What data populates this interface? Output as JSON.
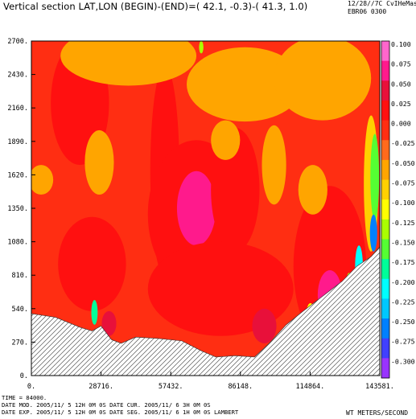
{
  "header": {
    "title": "Vertical section LAT,LON (BEGIN)-(END)=( 42.1,  -0.3)-( 41.3,   1.0)",
    "date_line1": "12/28//7C    CvIHeMas",
    "date_line2": "EBR06 0300"
  },
  "footer": {
    "time_line": "TIME =    84000.",
    "line2": "DATE MOD. 2005/11/ 5  12H 0M 0S    DATE CUR. 2005/11/ 6    3H 0M 0S",
    "line3": "DATE EXP. 2005/11/ 5  12H 0M 0S    DATE SEG. 2005/11/ 6    1H 0M 0S    LAMBERT"
  },
  "units": "WT METERS/SECOND",
  "chart_data": {
    "type": "heatmap",
    "variable": "vertical velocity (WT)",
    "x_ticks": [
      0,
      28716,
      57432,
      86148,
      114864,
      143581
    ],
    "x_tick_labels": [
      "0.",
      "28716.",
      "57432.",
      "86148.",
      "114864.",
      "143581."
    ],
    "y_ticks": [
      0,
      270,
      540,
      810,
      1080,
      1350,
      1620,
      1890,
      2160,
      2430,
      2700
    ],
    "y_tick_labels": [
      "0.",
      "270.",
      "540.",
      "810.",
      "1080.",
      "1350.",
      "1620.",
      "1890.",
      "2160.",
      "2430.",
      "2700."
    ],
    "xlim": [
      0,
      143581
    ],
    "ylim": [
      0,
      2700
    ],
    "colorbar": {
      "levels": [
        0.1,
        0.075,
        0.05,
        0.025,
        0.0,
        -0.025,
        -0.05,
        -0.075,
        -0.1,
        -0.125,
        -0.15,
        -0.175,
        -0.2,
        -0.225,
        -0.25,
        -0.275,
        -0.3
      ],
      "labels": [
        "0.100",
        "0.075",
        "0.050",
        "0.025",
        "0.000",
        "-0.025",
        "-0.050",
        "-0.075",
        "-0.100",
        "-0.125",
        "-0.150",
        "-0.175",
        "-0.200",
        "-0.225",
        "-0.250",
        "-0.275",
        "-0.300"
      ],
      "colors": [
        "#ff66cc",
        "#ff1a8c",
        "#e8103a",
        "#ff1010",
        "#ff2e12",
        "#ff6a1c",
        "#ffa500",
        "#ffd000",
        "#ffff00",
        "#aaff00",
        "#55ff33",
        "#00ff99",
        "#00ffff",
        "#00c8ff",
        "#0080ff",
        "#4040ff",
        "#9933ff"
      ]
    },
    "terrain": {
      "x": [
        0,
        10000,
        20000,
        25000,
        28716,
        33000,
        37000,
        43000,
        52000,
        62000,
        70000,
        76000,
        84000,
        92000,
        98000,
        105000,
        112000,
        120000,
        128000,
        134000,
        140000,
        143581
      ],
      "y": [
        500,
        470,
        390,
        360,
        400,
        290,
        260,
        310,
        300,
        280,
        200,
        150,
        160,
        150,
        260,
        410,
        520,
        640,
        760,
        880,
        960,
        1040
      ]
    },
    "features": [
      {
        "kind": "background",
        "value": 0.0
      },
      {
        "kind": "blob",
        "x": 20000,
        "y": 2200,
        "rx": 12000,
        "ry": 500,
        "value": 0.03
      },
      {
        "kind": "blob",
        "x": 55000,
        "y": 1650,
        "rx": 6000,
        "ry": 850,
        "value": 0.04
      },
      {
        "kind": "blob",
        "x": 25000,
        "y": 900,
        "rx": 14000,
        "ry": 380,
        "value": 0.03
      },
      {
        "kind": "blob",
        "x": 68000,
        "y": 1300,
        "rx": 20000,
        "ry": 600,
        "value": 0.045
      },
      {
        "kind": "blob",
        "x": 68000,
        "y": 1350,
        "rx": 8000,
        "ry": 300,
        "value": 0.09
      },
      {
        "kind": "blob",
        "x": 84000,
        "y": 1500,
        "rx": 10000,
        "ry": 500,
        "value": 0.035
      },
      {
        "kind": "blob",
        "x": 78000,
        "y": 700,
        "rx": 30000,
        "ry": 380,
        "value": 0.04
      },
      {
        "kind": "blob",
        "x": 123000,
        "y": 880,
        "rx": 15000,
        "ry": 650,
        "value": 0.035
      },
      {
        "kind": "blob",
        "x": 123000,
        "y": 650,
        "rx": 5000,
        "ry": 200,
        "value": 0.09
      },
      {
        "kind": "blob",
        "x": 32000,
        "y": 420,
        "rx": 3000,
        "ry": 100,
        "value": 0.06
      },
      {
        "kind": "blob",
        "x": 96000,
        "y": 400,
        "rx": 5000,
        "ry": 140,
        "value": 0.055
      },
      {
        "kind": "blob",
        "x": 40000,
        "y": 2580,
        "rx": 28000,
        "ry": 240,
        "value": -0.05
      },
      {
        "kind": "blob",
        "x": 88000,
        "y": 2350,
        "rx": 24000,
        "ry": 300,
        "value": -0.05
      },
      {
        "kind": "blob",
        "x": 120000,
        "y": 2400,
        "rx": 20000,
        "ry": 340,
        "value": -0.05
      },
      {
        "kind": "blob",
        "x": 28000,
        "y": 1720,
        "rx": 6000,
        "ry": 260,
        "value": -0.05
      },
      {
        "kind": "blob",
        "x": 100000,
        "y": 1700,
        "rx": 5000,
        "ry": 320,
        "value": -0.05
      },
      {
        "kind": "blob",
        "x": 116000,
        "y": 1500,
        "rx": 6000,
        "ry": 200,
        "value": -0.05
      },
      {
        "kind": "blob",
        "x": 80000,
        "y": 1900,
        "rx": 6000,
        "ry": 160,
        "value": -0.05
      },
      {
        "kind": "blob",
        "x": 4000,
        "y": 1580,
        "rx": 5000,
        "ry": 120,
        "value": -0.05
      },
      {
        "kind": "blob",
        "x": 140000,
        "y": 1550,
        "rx": 3000,
        "ry": 550,
        "value": -0.06
      },
      {
        "kind": "blob",
        "x": 141500,
        "y": 1600,
        "rx": 1800,
        "ry": 350,
        "value": -0.14
      },
      {
        "kind": "blob",
        "x": 141000,
        "y": 1150,
        "rx": 1500,
        "ry": 150,
        "value": -0.24
      },
      {
        "kind": "blob",
        "x": 135000,
        "y": 880,
        "rx": 1600,
        "ry": 170,
        "value": -0.2
      },
      {
        "kind": "blob",
        "x": 131000,
        "y": 720,
        "rx": 1400,
        "ry": 110,
        "value": -0.12
      },
      {
        "kind": "blob",
        "x": 26000,
        "y": 510,
        "rx": 1300,
        "ry": 100,
        "value": -0.16
      },
      {
        "kind": "blob",
        "x": 115000,
        "y": 475,
        "rx": 1800,
        "ry": 110,
        "value": -0.08
      },
      {
        "kind": "blob",
        "x": 70000,
        "y": 2650,
        "rx": 900,
        "ry": 50,
        "value": -0.11
      }
    ]
  }
}
